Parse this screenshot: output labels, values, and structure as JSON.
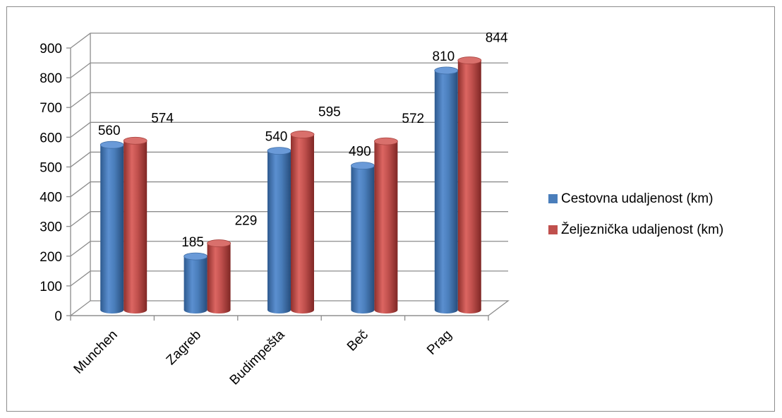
{
  "chart_data": {
    "type": "bar",
    "title": "",
    "xlabel": "",
    "ylabel": "",
    "categories": [
      "Munchen",
      "Zagreb",
      "Budimpešta",
      "Beč",
      "Prag"
    ],
    "series": [
      {
        "name": "Cestovna udaljenost (km)",
        "values": [
          560,
          185,
          540,
          490,
          810
        ],
        "color": "#4a7ebb"
      },
      {
        "name": "Željeznička udaljenost (km)",
        "values": [
          574,
          229,
          595,
          572,
          844
        ],
        "color": "#c0504d"
      }
    ],
    "ylim": [
      0,
      900
    ],
    "yticks": [
      "0",
      "100",
      "200",
      "300",
      "400",
      "500",
      "600",
      "700",
      "800",
      "900"
    ],
    "grid": true,
    "legend_position": "right",
    "style": "3d-cylinder"
  }
}
